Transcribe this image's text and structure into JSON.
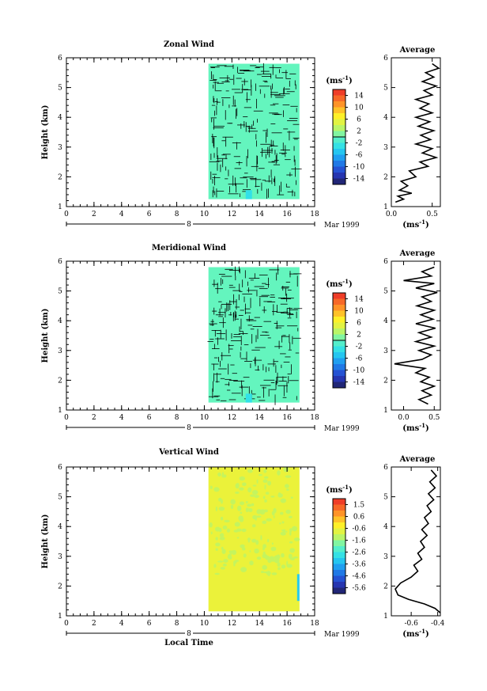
{
  "chart_data": [
    {
      "type": "heatmap",
      "title": "Zonal Wind",
      "xlabel": "",
      "ylabel": "Height (km)",
      "xlim": [
        0,
        18
      ],
      "ylim": [
        1,
        6
      ],
      "x_ticks": [
        "0",
        "2",
        "4",
        "6",
        "8",
        "10",
        "12",
        "14",
        "16",
        "18"
      ],
      "y_ticks": [
        "1",
        "2",
        "3",
        "4",
        "5",
        "6"
      ],
      "date_label": "8",
      "date_suffix": "Mar 1999",
      "data_x_range": [
        10.3,
        16.9
      ],
      "data_y_range": [
        1.25,
        5.8
      ],
      "colorbar": {
        "unit": "(ms-1)",
        "range": [
          -15,
          15
        ],
        "ticks": [
          "14",
          "10",
          "6",
          "2",
          "-2",
          "-6",
          "-10",
          "-14"
        ],
        "fill_value": 0
      },
      "average": {
        "title": "Average",
        "xlim": [
          0,
          0.6
        ],
        "ylim": [
          1,
          6
        ],
        "x_ticks": [
          "0.0",
          "0.5"
        ],
        "x_tick_values": [
          0,
          0.5
        ],
        "xlabel": "(ms-1)",
        "profile": [
          [
            0.05,
            1.15
          ],
          [
            0.15,
            1.25
          ],
          [
            0.08,
            1.35
          ],
          [
            0.25,
            1.45
          ],
          [
            0.1,
            1.55
          ],
          [
            0.2,
            1.7
          ],
          [
            0.12,
            1.85
          ],
          [
            0.3,
            2.0
          ],
          [
            0.22,
            2.2
          ],
          [
            0.45,
            2.35
          ],
          [
            0.35,
            2.5
          ],
          [
            0.55,
            2.65
          ],
          [
            0.38,
            2.8
          ],
          [
            0.5,
            2.95
          ],
          [
            0.3,
            3.1
          ],
          [
            0.48,
            3.25
          ],
          [
            0.36,
            3.4
          ],
          [
            0.52,
            3.55
          ],
          [
            0.33,
            3.7
          ],
          [
            0.47,
            3.85
          ],
          [
            0.3,
            4.0
          ],
          [
            0.5,
            4.15
          ],
          [
            0.35,
            4.3
          ],
          [
            0.46,
            4.45
          ],
          [
            0.3,
            4.6
          ],
          [
            0.5,
            4.75
          ],
          [
            0.4,
            4.9
          ],
          [
            0.55,
            5.05
          ],
          [
            0.38,
            5.2
          ],
          [
            0.52,
            5.35
          ],
          [
            0.42,
            5.5
          ],
          [
            0.58,
            5.65
          ],
          [
            0.5,
            5.8
          ]
        ]
      }
    },
    {
      "type": "heatmap",
      "title": "Meridional Wind",
      "xlabel": "",
      "ylabel": "Height (km)",
      "xlim": [
        0,
        18
      ],
      "ylim": [
        1,
        6
      ],
      "x_ticks": [
        "0",
        "2",
        "4",
        "6",
        "8",
        "10",
        "12",
        "14",
        "16",
        "18"
      ],
      "y_ticks": [
        "1",
        "2",
        "3",
        "4",
        "5",
        "6"
      ],
      "date_label": "8",
      "date_suffix": "Mar 1999",
      "data_x_range": [
        10.3,
        16.9
      ],
      "data_y_range": [
        1.25,
        5.8
      ],
      "colorbar": {
        "unit": "(ms-1)",
        "range": [
          -15,
          15
        ],
        "ticks": [
          "14",
          "10",
          "6",
          "2",
          "-2",
          "-6",
          "-10",
          "-14"
        ],
        "fill_value": 0
      },
      "average": {
        "title": "Average",
        "xlim": [
          -0.2,
          0.6
        ],
        "ylim": [
          1,
          6
        ],
        "x_ticks": [
          "0.0",
          "0.5"
        ],
        "x_tick_values": [
          0,
          0.5
        ],
        "xlabel": "(ms-1)",
        "profile": [
          [
            0.4,
            1.2
          ],
          [
            0.25,
            1.35
          ],
          [
            0.45,
            1.5
          ],
          [
            0.3,
            1.65
          ],
          [
            0.5,
            1.8
          ],
          [
            0.28,
            1.95
          ],
          [
            0.42,
            2.1
          ],
          [
            0.2,
            2.25
          ],
          [
            0.35,
            2.4
          ],
          [
            -0.15,
            2.55
          ],
          [
            0.3,
            2.7
          ],
          [
            0.45,
            2.85
          ],
          [
            0.25,
            3.0
          ],
          [
            0.5,
            3.15
          ],
          [
            0.2,
            3.3
          ],
          [
            0.45,
            3.45
          ],
          [
            0.25,
            3.6
          ],
          [
            0.52,
            3.75
          ],
          [
            0.2,
            3.9
          ],
          [
            0.48,
            4.05
          ],
          [
            0.28,
            4.2
          ],
          [
            0.5,
            4.35
          ],
          [
            0.22,
            4.5
          ],
          [
            0.45,
            4.65
          ],
          [
            0.3,
            4.8
          ],
          [
            0.55,
            4.95
          ],
          [
            0.2,
            5.1
          ],
          [
            0.5,
            5.25
          ],
          [
            0.0,
            5.35
          ],
          [
            0.45,
            5.5
          ],
          [
            0.3,
            5.65
          ],
          [
            0.5,
            5.8
          ]
        ]
      }
    },
    {
      "type": "heatmap",
      "title": "Vertical Wind",
      "xlabel": "Local Time",
      "ylabel": "Height (km)",
      "xlim": [
        0,
        18
      ],
      "ylim": [
        1,
        6
      ],
      "x_ticks": [
        "0",
        "2",
        "4",
        "6",
        "8",
        "10",
        "12",
        "14",
        "16",
        "18"
      ],
      "y_ticks": [
        "1",
        "2",
        "3",
        "4",
        "5",
        "6"
      ],
      "date_label": "8",
      "date_suffix": "Mar 1999",
      "data_x_range": [
        10.3,
        16.9
      ],
      "data_y_range": [
        1.15,
        6.0
      ],
      "colorbar": {
        "unit": "(ms-1)",
        "range": [
          -6,
          2
        ],
        "ticks": [
          "1.5",
          "0.6",
          "-0.6",
          "-1.6",
          "-2.6",
          "-3.6",
          "-4.6",
          "-5.6"
        ],
        "fill_value": -0.6
      },
      "average": {
        "title": "Average",
        "xlim": [
          -0.75,
          -0.38
        ],
        "ylim": [
          1,
          6
        ],
        "x_ticks": [
          "-0.6",
          "-0.4"
        ],
        "x_tick_values": [
          -0.6,
          -0.4
        ],
        "xlabel": "(ms-1)",
        "profile": [
          [
            -0.38,
            1.1
          ],
          [
            -0.42,
            1.25
          ],
          [
            -0.5,
            1.4
          ],
          [
            -0.62,
            1.55
          ],
          [
            -0.7,
            1.7
          ],
          [
            -0.72,
            1.9
          ],
          [
            -0.68,
            2.1
          ],
          [
            -0.6,
            2.3
          ],
          [
            -0.55,
            2.5
          ],
          [
            -0.58,
            2.7
          ],
          [
            -0.52,
            2.9
          ],
          [
            -0.55,
            3.1
          ],
          [
            -0.5,
            3.3
          ],
          [
            -0.53,
            3.5
          ],
          [
            -0.48,
            3.7
          ],
          [
            -0.52,
            3.9
          ],
          [
            -0.47,
            4.1
          ],
          [
            -0.5,
            4.3
          ],
          [
            -0.45,
            4.5
          ],
          [
            -0.48,
            4.7
          ],
          [
            -0.43,
            4.9
          ],
          [
            -0.47,
            5.1
          ],
          [
            -0.42,
            5.3
          ],
          [
            -0.46,
            5.5
          ],
          [
            -0.41,
            5.7
          ],
          [
            -0.45,
            5.9
          ]
        ]
      }
    }
  ]
}
